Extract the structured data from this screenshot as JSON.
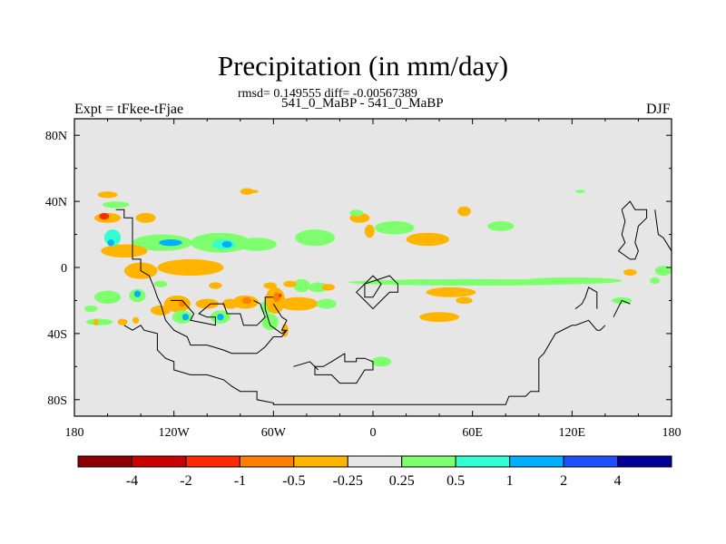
{
  "header": {
    "title": "Precipitation (in mm/day)",
    "stats": "rmsd= 0.149555 diff= -0.00567389",
    "expt_label": "Expt = tFkee-tFjae",
    "case_label": "541_0_MaBP - 541_0_MaBP",
    "season": "DJF"
  },
  "chart_data": {
    "type": "contour-map",
    "title": "Precipitation (in mm/day)",
    "projection": "cylindrical-equidistant",
    "xlim": [
      -180,
      180
    ],
    "ylim": [
      -90,
      90
    ],
    "x_ticks": [
      -180,
      -120,
      -60,
      0,
      60,
      120,
      180
    ],
    "x_tick_labels": [
      "180",
      "120W",
      "60W",
      "0",
      "60E",
      "120E",
      "180"
    ],
    "y_ticks": [
      80,
      40,
      0,
      -40,
      -80
    ],
    "y_tick_labels": [
      "80N",
      "40N",
      "0",
      "40S",
      "80S"
    ],
    "background_color": "#e6e6e6",
    "colorbar": {
      "levels": [
        -4,
        -2,
        -1,
        -0.5,
        -0.25,
        0.25,
        0.5,
        1,
        2,
        4
      ],
      "level_labels": [
        "-4",
        "-2",
        "-1",
        "-0.5",
        "-0.25",
        "0.25",
        "0.5",
        "1",
        "2",
        "4"
      ],
      "colors": [
        "#8c0000",
        "#c80000",
        "#ff2a00",
        "#ff7f00",
        "#ffb400",
        "#e6e6e6",
        "#7dff6e",
        "#32ffd2",
        "#00afff",
        "#1e50ff",
        "#000096"
      ]
    },
    "anomaly_regions": [
      {
        "lon": -160,
        "lat": 30,
        "lon_width": 8,
        "lat_height": 3,
        "value": -0.5
      },
      {
        "lon": -162,
        "lat": 31,
        "lon_width": 3,
        "lat_height": 2,
        "value": -2
      },
      {
        "lon": -155,
        "lat": 38,
        "lon_width": 8,
        "lat_height": 2,
        "value": 0.3
      },
      {
        "lon": -160,
        "lat": 44,
        "lon_width": 6,
        "lat_height": 2,
        "value": -0.3
      },
      {
        "lon": -137,
        "lat": 30,
        "lon_width": 6,
        "lat_height": 3,
        "value": -0.3
      },
      {
        "lon": -127,
        "lat": 15,
        "lon_width": 18,
        "lat_height": 5,
        "value": 0.3
      },
      {
        "lon": -122,
        "lat": 15,
        "lon_width": 7,
        "lat_height": 2,
        "value": 1
      },
      {
        "lon": -150,
        "lat": 10,
        "lon_width": 14,
        "lat_height": 4,
        "value": -0.3
      },
      {
        "lon": -157,
        "lat": 18,
        "lon_width": 5,
        "lat_height": 5,
        "value": 0.5
      },
      {
        "lon": -158,
        "lat": 15,
        "lon_width": 2,
        "lat_height": 2,
        "value": 1
      },
      {
        "lon": -140,
        "lat": -2,
        "lon_width": 10,
        "lat_height": 5,
        "value": -0.3
      },
      {
        "lon": -92,
        "lat": 15,
        "lon_width": 18,
        "lat_height": 6,
        "value": 0.3
      },
      {
        "lon": -90,
        "lat": 14,
        "lon_width": 7,
        "lat_height": 3,
        "value": 0.5
      },
      {
        "lon": -88,
        "lat": 14,
        "lon_width": 3,
        "lat_height": 2,
        "value": 1
      },
      {
        "lon": -70,
        "lat": 14,
        "lon_width": 12,
        "lat_height": 4,
        "value": 0.3
      },
      {
        "lon": -110,
        "lat": 0,
        "lon_width": 20,
        "lat_height": 5,
        "value": -0.3
      },
      {
        "lon": -35,
        "lat": 18,
        "lon_width": 12,
        "lat_height": 5,
        "value": 0.3
      },
      {
        "lon": -8,
        "lat": 30,
        "lon_width": 6,
        "lat_height": 3,
        "value": -0.3
      },
      {
        "lon": -2,
        "lat": 22,
        "lon_width": 3,
        "lat_height": 4,
        "value": -0.3
      },
      {
        "lon": -10,
        "lat": 33,
        "lon_width": 4,
        "lat_height": 2,
        "value": 0.3
      },
      {
        "lon": 13,
        "lat": 24,
        "lon_width": 12,
        "lat_height": 4,
        "value": 0.3
      },
      {
        "lon": 33,
        "lat": 17,
        "lon_width": 13,
        "lat_height": 4,
        "value": -0.3
      },
      {
        "lon": 55,
        "lat": 34,
        "lon_width": 4,
        "lat_height": 3,
        "value": -0.3
      },
      {
        "lon": 77,
        "lat": 25,
        "lon_width": 8,
        "lat_height": 3,
        "value": 0.3
      },
      {
        "lon": 125,
        "lat": 46,
        "lon_width": 3,
        "lat_height": 1,
        "value": 0.3
      },
      {
        "lon": -72,
        "lat": 46,
        "lon_width": 3,
        "lat_height": 1,
        "value": -0.3
      },
      {
        "lon": -160,
        "lat": -18,
        "lon_width": 8,
        "lat_height": 4,
        "value": 0.3
      },
      {
        "lon": -142,
        "lat": -17,
        "lon_width": 5,
        "lat_height": 4,
        "value": 0.3
      },
      {
        "lon": -142,
        "lat": -16,
        "lon_width": 2,
        "lat_height": 2,
        "value": 1
      },
      {
        "lon": -170,
        "lat": -25,
        "lon_width": 4,
        "lat_height": 2,
        "value": 0.3
      },
      {
        "lon": -165,
        "lat": -33,
        "lon_width": 8,
        "lat_height": 2,
        "value": 0.3
      },
      {
        "lon": -151,
        "lat": -33,
        "lon_width": 3,
        "lat_height": 2,
        "value": -0.3
      },
      {
        "lon": -118,
        "lat": -22,
        "lon_width": 8,
        "lat_height": 5,
        "value": -0.5
      },
      {
        "lon": -115,
        "lat": -22,
        "lon_width": 2,
        "lat_height": 2,
        "value": -1
      },
      {
        "lon": -128,
        "lat": -26,
        "lon_width": 6,
        "lat_height": 3,
        "value": -0.3
      },
      {
        "lon": -115,
        "lat": -30,
        "lon_width": 6,
        "lat_height": 4,
        "value": 0.3
      },
      {
        "lon": -113,
        "lat": -30,
        "lon_width": 2,
        "lat_height": 2,
        "value": 1
      },
      {
        "lon": -100,
        "lat": -22,
        "lon_width": 7,
        "lat_height": 3,
        "value": -0.3
      },
      {
        "lon": -92,
        "lat": -30,
        "lon_width": 6,
        "lat_height": 4,
        "value": 0.3
      },
      {
        "lon": -92,
        "lat": -30,
        "lon_width": 2,
        "lat_height": 2,
        "value": 1
      },
      {
        "lon": -77,
        "lat": -21,
        "lon_width": 8,
        "lat_height": 4,
        "value": -0.5
      },
      {
        "lon": -76,
        "lat": -20,
        "lon_width": 3,
        "lat_height": 2,
        "value": -1
      },
      {
        "lon": -86,
        "lat": -22,
        "lon_width": 5,
        "lat_height": 3,
        "value": -0.3
      },
      {
        "lon": -64,
        "lat": -24,
        "lon_width": 4,
        "lat_height": 4,
        "value": 0.3
      },
      {
        "lon": -59,
        "lat": -20,
        "lon_width": 6,
        "lat_height": 8,
        "value": -0.5
      },
      {
        "lon": -58,
        "lat": -18,
        "lon_width": 2,
        "lat_height": 3,
        "value": -1
      },
      {
        "lon": -56,
        "lat": -17,
        "lon_width": 1,
        "lat_height": 1,
        "value": -2
      },
      {
        "lon": -62,
        "lat": -33,
        "lon_width": 5,
        "lat_height": 5,
        "value": 0.3
      },
      {
        "lon": -53,
        "lat": -38,
        "lon_width": 2,
        "lat_height": 4,
        "value": -0.3
      },
      {
        "lon": -45,
        "lat": -22,
        "lon_width": 12,
        "lat_height": 4,
        "value": -0.3
      },
      {
        "lon": -28,
        "lat": -22,
        "lon_width": 6,
        "lat_height": 3,
        "value": 0.3
      },
      {
        "lon": -43,
        "lat": -11,
        "lon_width": 5,
        "lat_height": 4,
        "value": 0.3
      },
      {
        "lon": -33,
        "lat": -12,
        "lon_width": 6,
        "lat_height": 3,
        "value": 0.3
      },
      {
        "lon": -27,
        "lat": -12,
        "lon_width": 4,
        "lat_height": 2,
        "value": -0.3
      },
      {
        "lon": -62,
        "lat": -11,
        "lon_width": 4,
        "lat_height": 2,
        "value": -0.3
      },
      {
        "lon": -95,
        "lat": -11,
        "lon_width": 4,
        "lat_height": 2,
        "value": -0.3
      },
      {
        "lon": -128,
        "lat": -10,
        "lon_width": 4,
        "lat_height": 2,
        "value": 0.3
      },
      {
        "lon": -50,
        "lat": -10,
        "lon_width": 4,
        "lat_height": 2,
        "value": -0.3
      },
      {
        "lon": -76,
        "lat": 46,
        "lon_width": 4,
        "lat_height": 2,
        "value": -0.3
      },
      {
        "lon": 60,
        "lat": -9,
        "lon_width": 75,
        "lat_height": 2,
        "value": 0.3
      },
      {
        "lon": 120,
        "lat": -8,
        "lon_width": 30,
        "lat_height": 2,
        "value": 0.3
      },
      {
        "lon": 47,
        "lat": -15,
        "lon_width": 15,
        "lat_height": 3,
        "value": -0.3
      },
      {
        "lon": 40,
        "lat": -30,
        "lon_width": 12,
        "lat_height": 3,
        "value": -0.3
      },
      {
        "lon": 55,
        "lat": -20,
        "lon_width": 5,
        "lat_height": 2,
        "value": -0.3
      },
      {
        "lon": 5,
        "lat": -57,
        "lon_width": 6,
        "lat_height": 3,
        "value": 0.3
      },
      {
        "lon": 150,
        "lat": -20,
        "lon_width": 6,
        "lat_height": 2,
        "value": 0.3
      },
      {
        "lon": 155,
        "lat": -3,
        "lon_width": 4,
        "lat_height": 2,
        "value": -0.3
      },
      {
        "lon": 175,
        "lat": -2,
        "lon_width": 5,
        "lat_height": 3,
        "value": 0.3
      },
      {
        "lon": 170,
        "lat": -8,
        "lon_width": 3,
        "lat_height": 2,
        "value": 0.3
      },
      {
        "lon": -167,
        "lat": -33,
        "lon_width": 1.5,
        "lat_height": 2,
        "value": -0.3
      },
      {
        "lon": -143,
        "lat": -32,
        "lon_width": 2,
        "lat_height": 2,
        "value": -0.3
      }
    ],
    "continent_outlines": [
      [
        [
          -155,
          35
        ],
        [
          -150,
          35
        ],
        [
          -150,
          30
        ],
        [
          -145,
          30
        ],
        [
          -145,
          5
        ],
        [
          -140,
          5
        ],
        [
          -140,
          -2
        ],
        [
          -135,
          -5
        ],
        [
          -132,
          -12
        ],
        [
          -130,
          -18
        ],
        [
          -128,
          -22
        ],
        [
          -125,
          -32
        ],
        [
          -120,
          -38
        ],
        [
          -112,
          -42
        ],
        [
          -110,
          -47
        ],
        [
          -100,
          -47
        ],
        [
          -90,
          -50
        ],
        [
          -85,
          -52
        ],
        [
          -70,
          -52
        ],
        [
          -65,
          -48
        ],
        [
          -60,
          -42
        ],
        [
          -55,
          -42
        ],
        [
          -52,
          -38
        ],
        [
          -55,
          -38
        ],
        [
          -52,
          -32
        ],
        [
          -55,
          -30
        ],
        [
          -60,
          -22
        ]
      ],
      [
        [
          -150,
          -35
        ],
        [
          -145,
          -38
        ],
        [
          -140,
          -35
        ],
        [
          -138,
          -38
        ],
        [
          -130,
          -40
        ],
        [
          -130,
          -50
        ],
        [
          -125,
          -55
        ],
        [
          -120,
          -57
        ],
        [
          -120,
          -62
        ],
        [
          -110,
          -65
        ],
        [
          -100,
          -65
        ],
        [
          -90,
          -68
        ],
        [
          -85,
          -72
        ],
        [
          -80,
          -75
        ],
        [
          -70,
          -75
        ],
        [
          -70,
          -80
        ],
        [
          -60,
          -82
        ],
        [
          -60,
          -83
        ],
        [
          80,
          -83
        ],
        [
          82,
          -78
        ],
        [
          92,
          -78
        ],
        [
          95,
          -75
        ],
        [
          100,
          -75
        ],
        [
          100,
          -62
        ],
        [
          100,
          -55
        ],
        [
          103,
          -52
        ],
        [
          110,
          -40
        ],
        [
          120,
          -35
        ],
        [
          122,
          -35
        ],
        [
          130,
          -32
        ],
        [
          135,
          -38
        ],
        [
          137,
          -38
        ],
        [
          140,
          -35
        ]
      ],
      [
        [
          135,
          -25
        ],
        [
          135,
          -15
        ],
        [
          130,
          -12
        ],
        [
          128,
          -18
        ],
        [
          126,
          -22
        ],
        [
          122,
          -25
        ]
      ],
      [
        [
          145,
          -30
        ],
        [
          150,
          -20
        ],
        [
          155,
          -22
        ]
      ],
      [
        [
          -5,
          -10
        ],
        [
          -5,
          -18
        ],
        [
          0,
          -18
        ],
        [
          5,
          -10
        ],
        [
          0,
          -5
        ],
        [
          -5,
          -10
        ]
      ],
      [
        [
          -5,
          -10
        ],
        [
          10,
          -5
        ],
        [
          15,
          -10
        ],
        [
          15,
          -15
        ],
        [
          10,
          -15
        ],
        [
          5,
          -20
        ],
        [
          0,
          -25
        ],
        [
          -5,
          -20
        ],
        [
          -10,
          -15
        ],
        [
          -5,
          -10
        ]
      ],
      [
        [
          -17,
          -52
        ],
        [
          -17,
          -57
        ],
        [
          -10,
          -57
        ],
        [
          -10,
          -55
        ],
        [
          -5,
          -55
        ],
        [
          0,
          -57
        ],
        [
          0,
          -62
        ],
        [
          -5,
          -62
        ],
        [
          -10,
          -70
        ],
        [
          -20,
          -70
        ],
        [
          -25,
          -65
        ],
        [
          -35,
          -65
        ],
        [
          -35,
          -60
        ],
        [
          -30,
          -60
        ],
        [
          -25,
          -57
        ],
        [
          -17,
          -52
        ]
      ],
      [
        [
          -48,
          -60
        ],
        [
          -38,
          -57
        ],
        [
          -33,
          -62
        ]
      ],
      [
        [
          150,
          35
        ],
        [
          152,
          28
        ],
        [
          150,
          20
        ],
        [
          152,
          15
        ],
        [
          148,
          10
        ],
        [
          155,
          5
        ],
        [
          158,
          5
        ],
        [
          160,
          10
        ],
        [
          158,
          15
        ],
        [
          160,
          25
        ],
        [
          165,
          30
        ],
        [
          165,
          35
        ],
        [
          158,
          35
        ],
        [
          155,
          40
        ],
        [
          150,
          35
        ]
      ],
      [
        [
          170,
          35
        ],
        [
          172,
          20
        ],
        [
          175,
          18
        ],
        [
          180,
          10
        ]
      ],
      [
        [
          -122,
          -20
        ],
        [
          -115,
          -20
        ],
        [
          -108,
          -28
        ],
        [
          -110,
          -32
        ],
        [
          -95,
          -35
        ],
        [
          -95,
          -30
        ],
        [
          -100,
          -30
        ],
        [
          -105,
          -28
        ],
        [
          -98,
          -22
        ],
        [
          -90,
          -22
        ],
        [
          -88,
          -28
        ],
        [
          -80,
          -28
        ],
        [
          -78,
          -35
        ],
        [
          -70,
          -35
        ],
        [
          -65,
          -30
        ],
        [
          -68,
          -22
        ],
        [
          -72,
          -20
        ]
      ],
      [
        [
          -60,
          -18
        ],
        [
          -65,
          -18
        ],
        [
          -65,
          -25
        ],
        [
          -62,
          -35
        ],
        [
          -55,
          -40
        ],
        [
          -52,
          -38
        ]
      ]
    ]
  }
}
